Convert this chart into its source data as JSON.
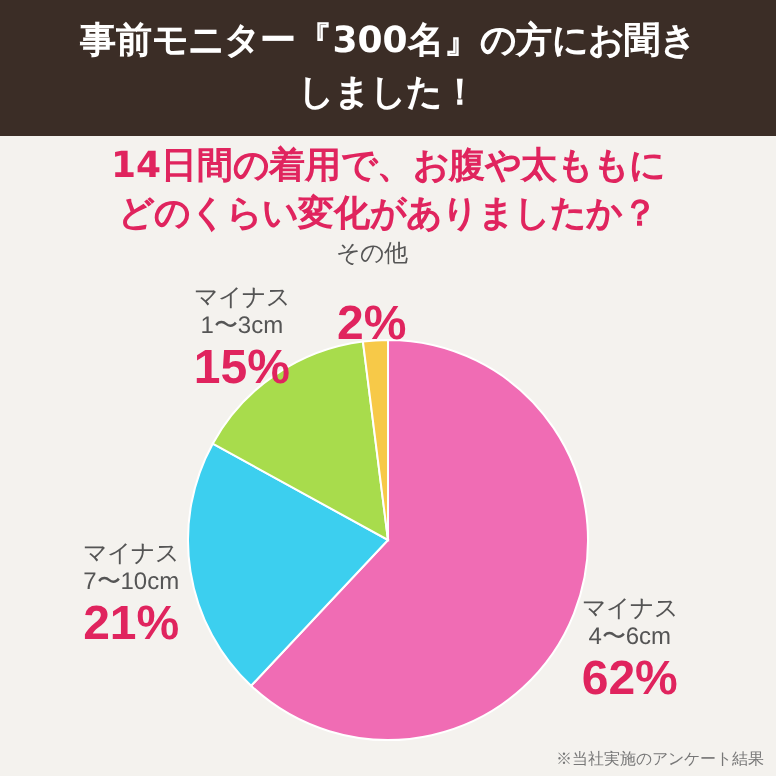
{
  "chart_data": {
    "type": "pie",
    "title": "事前モニター『300名』の方にお聞きしました！",
    "subtitle": "14日間の着用で、お腹や太ももにどのくらい変化がありましたか？",
    "categories": [
      "マイナス 4〜6cm",
      "マイナス 7〜10cm",
      "マイナス 1〜3cm",
      "その他"
    ],
    "values": [
      62,
      21,
      15,
      2
    ],
    "value_labels": [
      "62%",
      "21%",
      "15%",
      "2%"
    ],
    "colors": [
      "#f06cb4",
      "#3ccfef",
      "#a8dc4c",
      "#f7c948"
    ],
    "annotations": [
      "※当社実施のアンケート結果"
    ]
  }
}
